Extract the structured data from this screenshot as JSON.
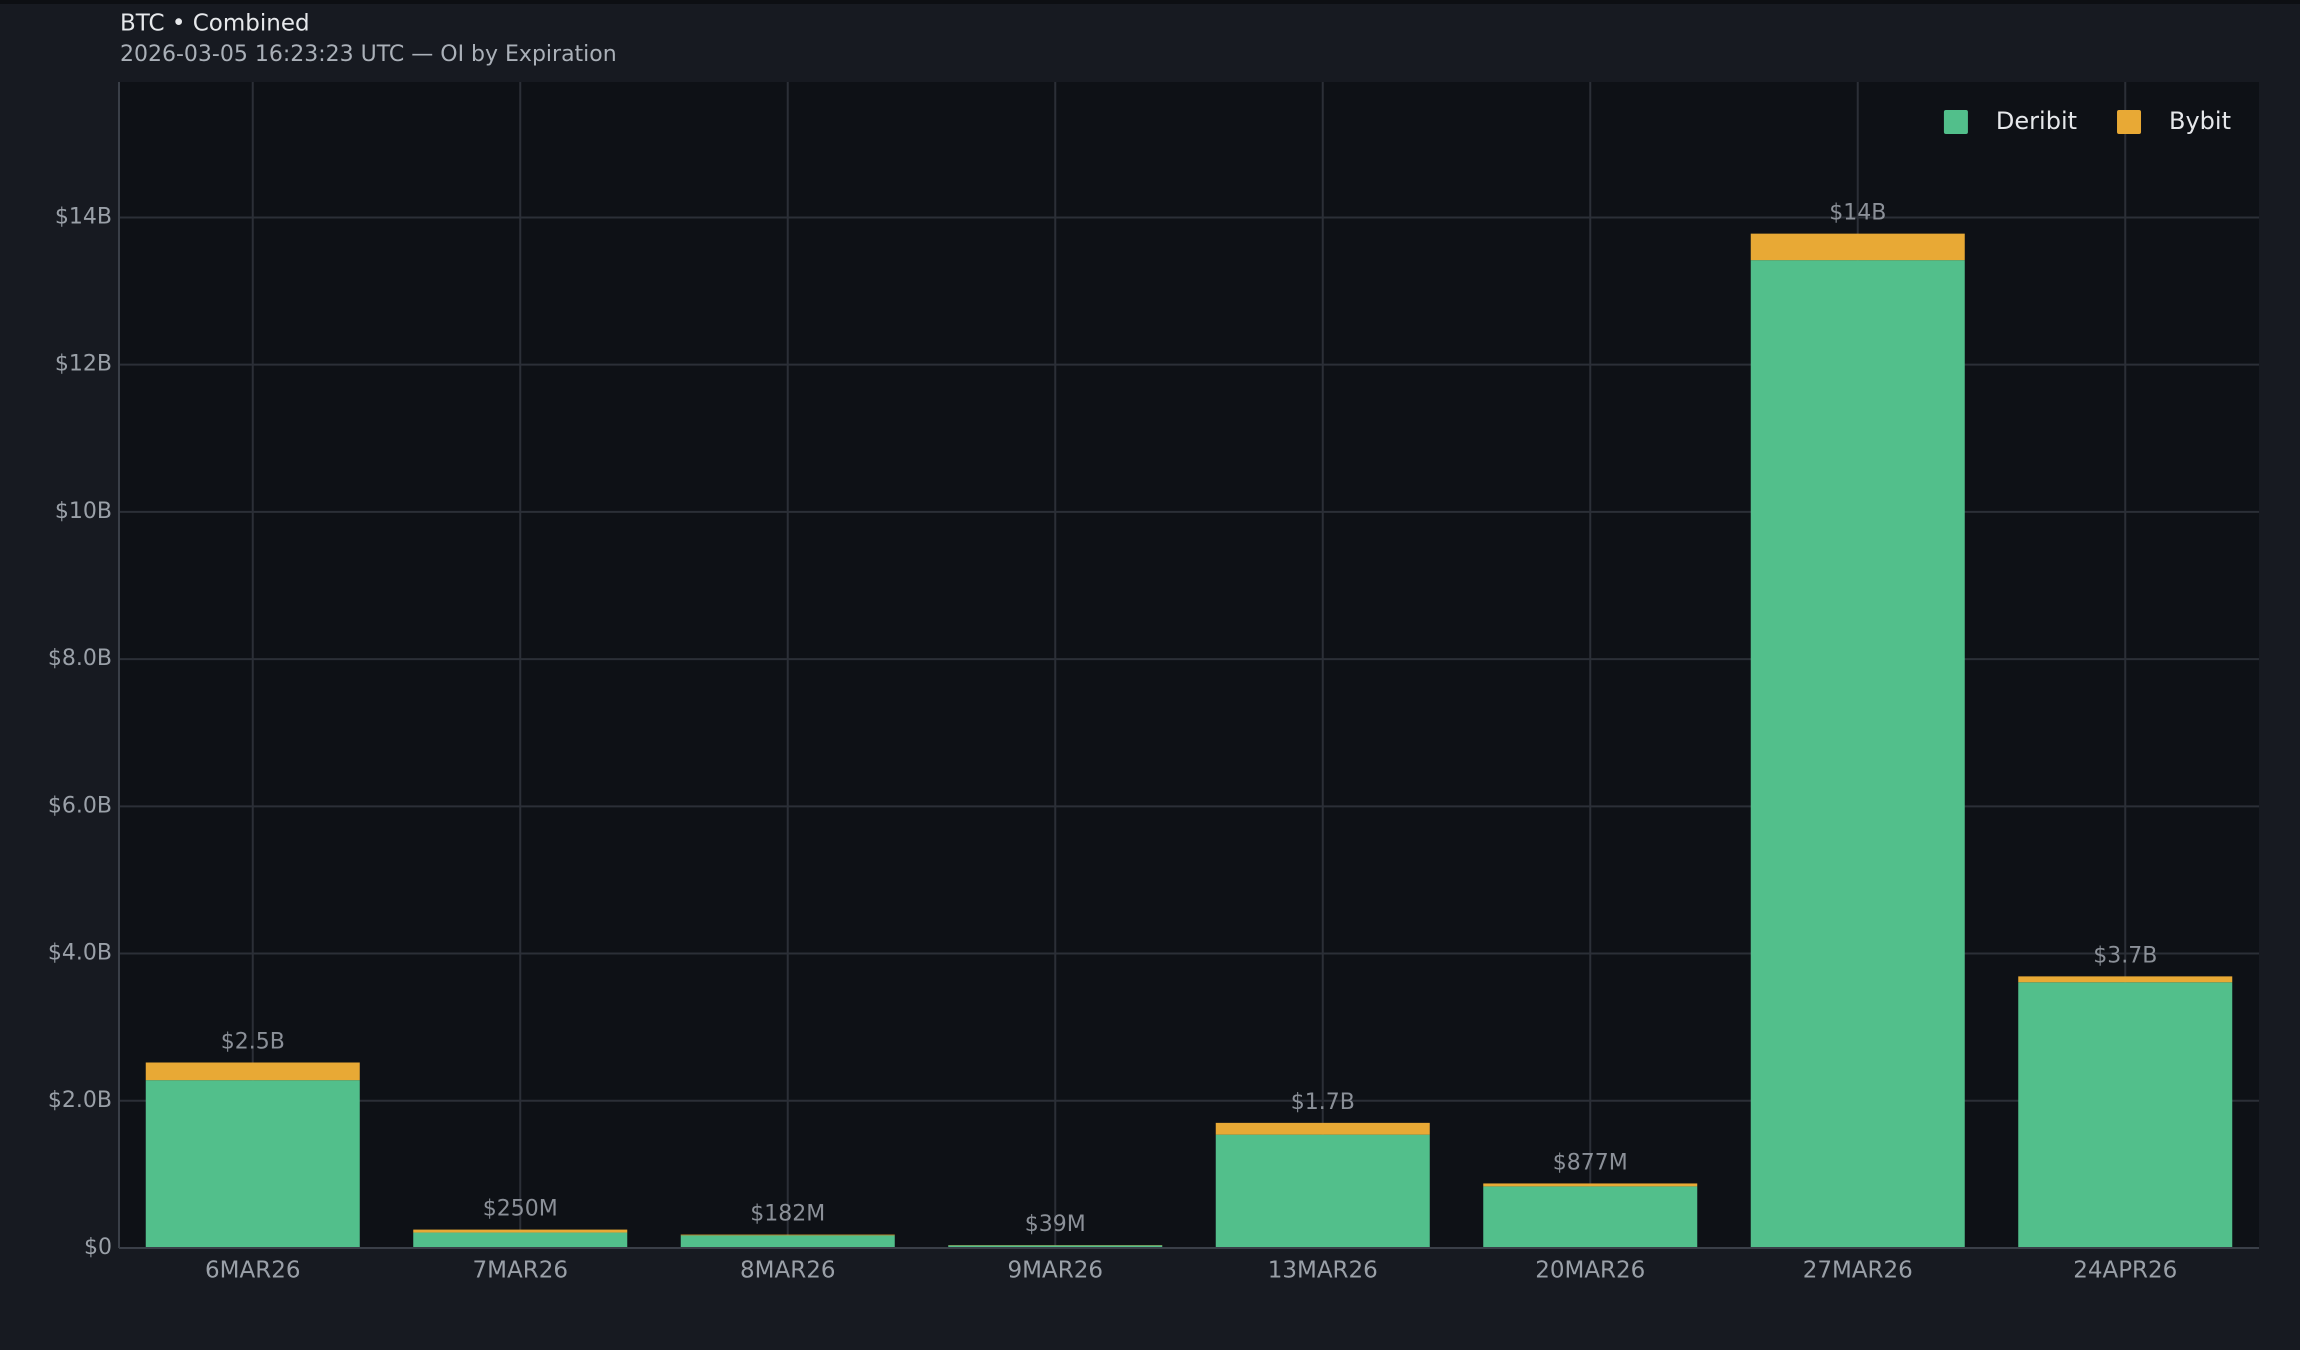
{
  "chart_data": {
    "type": "stacked_bar",
    "title": "BTC • Combined",
    "subtitle": "2026-03-05 16:23:23 UTC — OI by Expiration",
    "categories": [
      "6MAR26",
      "7MAR26",
      "8MAR26",
      "9MAR26",
      "13MAR26",
      "20MAR26",
      "27MAR26",
      "24APR26"
    ],
    "series": [
      {
        "name": "Deribit",
        "color": "#52bf8b",
        "values": [
          2280000000,
          210000000,
          172000000,
          35000000,
          1540000000,
          837000000,
          13420000000,
          3610000000
        ]
      },
      {
        "name": "Bybit",
        "color": "#e8a935",
        "values": [
          240000000,
          40000000,
          10000000,
          4000000,
          160000000,
          40000000,
          360000000,
          80000000
        ]
      }
    ],
    "total_labels": [
      "$2.5B",
      "$250M",
      "$182M",
      "$39M",
      "$1.7B",
      "$877M",
      "$14B",
      "$3.7B"
    ],
    "ylim": [
      0,
      15840000000
    ],
    "yticks": [
      {
        "value": 0,
        "label": "$0"
      },
      {
        "value": 2000000000,
        "label": "$2.0B"
      },
      {
        "value": 4000000000,
        "label": "$4.0B"
      },
      {
        "value": 6000000000,
        "label": "$6.0B"
      },
      {
        "value": 8000000000,
        "label": "$8.0B"
      },
      {
        "value": 10000000000,
        "label": "$10B"
      },
      {
        "value": 12000000000,
        "label": "$12B"
      },
      {
        "value": 14000000000,
        "label": "$14B"
      }
    ],
    "grid": true,
    "legend": "top-right"
  }
}
